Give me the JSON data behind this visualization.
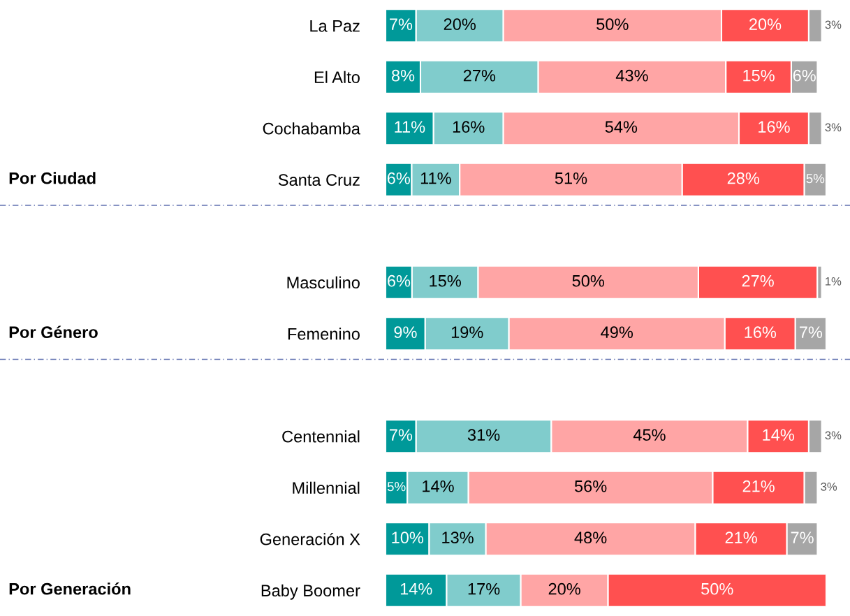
{
  "chart_data": [
    {
      "type": "bar",
      "orientation": "horizontal",
      "stacked": true,
      "tick_labels": "y",
      "grid": false,
      "categories": [
        "La Paz",
        "El Alto",
        "Cochabamba",
        "Santa Cruz"
      ],
      "annotations": [
        "Por Ciudad"
      ],
      "series": [
        {
          "color": "#009999",
          "values": [
            7,
            8,
            11,
            6
          ],
          "value_labels": [
            "7%",
            "8%",
            "11%",
            "6%"
          ]
        },
        {
          "color": "#80cccc",
          "values": [
            20,
            27,
            16,
            11
          ],
          "value_labels": [
            "20%",
            "27%",
            "16%",
            "11%"
          ]
        },
        {
          "color": "#ffa5a5",
          "values": [
            50,
            43,
            54,
            51
          ],
          "value_labels": [
            "50%",
            "43%",
            "54%",
            "51%"
          ]
        },
        {
          "color": "#ff5050",
          "values": [
            20,
            15,
            16,
            28
          ],
          "value_labels": [
            "20%",
            "15%",
            "16%",
            "28%"
          ]
        },
        {
          "color": "#a6a6a6",
          "values": [
            3,
            6,
            3,
            5
          ],
          "value_labels": [
            "3%",
            "6%",
            "3%",
            "5%"
          ]
        }
      ]
    },
    {
      "type": "bar",
      "orientation": "horizontal",
      "stacked": true,
      "tick_labels": "y",
      "grid": false,
      "categories": [
        null,
        "Masculino",
        "Femenino"
      ],
      "annotations": [
        "Por Género"
      ],
      "series": [
        {
          "color": "#009999",
          "values": [
            null,
            6,
            9
          ],
          "value_labels": [
            null,
            "6%",
            "9%"
          ]
        },
        {
          "color": "#80cccc",
          "values": [
            null,
            15,
            19
          ],
          "value_labels": [
            null,
            "15%",
            "19%"
          ]
        },
        {
          "color": "#ffa5a5",
          "values": [
            null,
            50,
            49
          ],
          "value_labels": [
            null,
            "50%",
            "49%"
          ]
        },
        {
          "color": "#ff5050",
          "values": [
            null,
            27,
            16
          ],
          "value_labels": [
            null,
            "27%",
            "16%"
          ]
        },
        {
          "color": "#a6a6a6",
          "values": [
            null,
            1,
            7
          ],
          "value_labels": [
            null,
            "1%",
            "7%"
          ]
        }
      ]
    },
    {
      "type": "bar",
      "orientation": "horizontal",
      "stacked": true,
      "tick_labels": "y",
      "grid": false,
      "categories": [
        null,
        "Centennial",
        "Millennial",
        "Generación X",
        "Baby Boomer"
      ],
      "annotations": [
        "Por Generación"
      ],
      "series": [
        {
          "color": "#009999",
          "values": [
            null,
            7,
            5,
            10,
            14
          ],
          "value_labels": [
            null,
            "7%",
            "5%",
            "10%",
            "14%"
          ]
        },
        {
          "color": "#80cccc",
          "values": [
            null,
            31,
            14,
            13,
            17
          ],
          "value_labels": [
            null,
            "31%",
            "14%",
            "13%",
            "17%"
          ]
        },
        {
          "color": "#ffa5a5",
          "values": [
            null,
            45,
            56,
            48,
            20
          ],
          "value_labels": [
            null,
            "45%",
            "56%",
            "48%",
            "20%"
          ]
        },
        {
          "color": "#ff5050",
          "values": [
            null,
            14,
            21,
            21,
            50
          ],
          "value_labels": [
            null,
            "14%",
            "21%",
            "21%",
            "50%"
          ]
        },
        {
          "color": "#a6a6a6",
          "values": [
            null,
            3,
            3,
            7,
            null
          ],
          "value_labels": [
            null,
            "3%",
            "3%",
            "7%",
            null
          ]
        }
      ]
    }
  ]
}
